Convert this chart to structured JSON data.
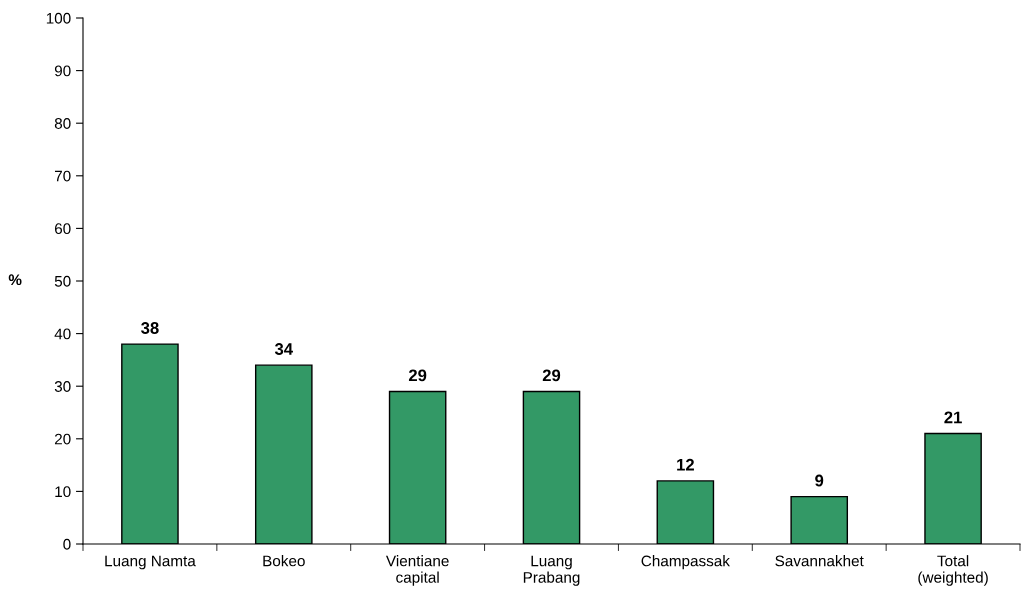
{
  "chart_data": {
    "type": "bar",
    "categories": [
      "Luang Namta",
      "Bokeo",
      "Vientiane\ncapital",
      "Luang\nPrabang",
      "Champassak",
      "Savannakhet",
      "Total\n(weighted)"
    ],
    "values": [
      38,
      34,
      29,
      29,
      12,
      9,
      21
    ],
    "color": "#339966",
    "ylabel": "%",
    "ylim": [
      0,
      100
    ],
    "yticks": [
      0,
      10,
      20,
      30,
      40,
      50,
      60,
      70,
      80,
      90,
      100
    ],
    "data_labels": true,
    "grid": false,
    "legend": false
  }
}
